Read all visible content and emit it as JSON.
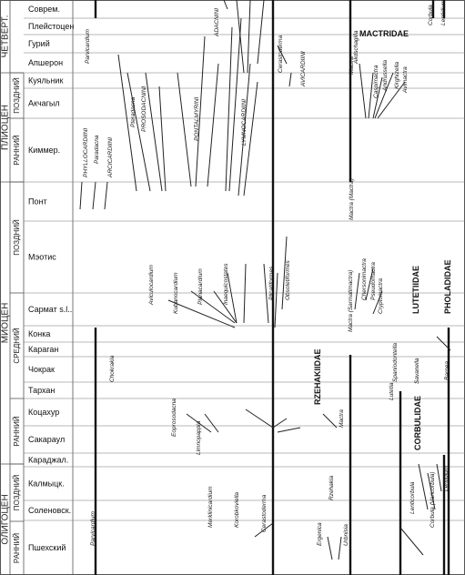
{
  "eras": [
    {
      "label": "ЧЕТВЕРТ.",
      "y1": 0,
      "y2": 80
    },
    {
      "label": "ПЛИОЦЕН",
      "y1": 80,
      "y2": 200
    },
    {
      "label": "МИОЦЕН",
      "y1": 200,
      "y2": 510
    },
    {
      "label": "ОЛИГОЦЕН",
      "y1": 510,
      "y2": 632
    }
  ],
  "subperiods": [
    {
      "label": "ПОЗДНИЙ",
      "y1": 80,
      "y2": 130
    },
    {
      "label": "РАННИЙ",
      "y1": 130,
      "y2": 200
    },
    {
      "label": "ПОЗДНИЙ",
      "y1": 200,
      "y2": 322
    },
    {
      "label": "СРЕДНИЙ",
      "y1": 322,
      "y2": 438
    },
    {
      "label": "РАННИЙ",
      "y1": 438,
      "y2": 510
    },
    {
      "label": "ПОЗДНИЙ",
      "y1": 510,
      "y2": 573
    },
    {
      "label": "РАННИЙ",
      "y1": 573,
      "y2": 632
    }
  ],
  "stages": [
    {
      "label": "Соврем."
    },
    {
      "label": "Плейстоцен"
    },
    {
      "label": "Гурий"
    },
    {
      "label": "Апшерон"
    },
    {
      "label": "Куяльник"
    },
    {
      "label": "Акчагыл"
    },
    {
      "label": "Киммер."
    },
    {
      "label": "Понт"
    },
    {
      "label": "Мэотис"
    },
    {
      "label": "Сармат s.l.."
    },
    {
      "label": "Конка"
    },
    {
      "label": "Караган"
    },
    {
      "label": "Чокрак"
    },
    {
      "label": "Тархан"
    },
    {
      "label": "Коцахур"
    },
    {
      "label": "Сакараул"
    },
    {
      "label": "Караджал."
    },
    {
      "label": "Калмыцк."
    },
    {
      "label": "Соленовск."
    },
    {
      "label": "Пшехский"
    }
  ],
  "families": [
    {
      "label": "MACTRIDAE"
    },
    {
      "label": "LUTETIIDAE"
    },
    {
      "label": "PHOLADIDAE"
    },
    {
      "label": "RZEHAKIIDAE"
    },
    {
      "label": "CORBULIDAE"
    }
  ],
  "taxa": [
    {
      "label": "Parvicardium"
    },
    {
      "label": "ADACNINI"
    },
    {
      "label": "Mactra"
    },
    {
      "label": "Corbula"
    },
    {
      "label": "Lentidium"
    },
    {
      "label": "Cerastoderma"
    },
    {
      "label": "AVICARDIINI"
    },
    {
      "label": "Akdschagilia"
    },
    {
      "label": "Caspimactra"
    },
    {
      "label": "Andrussella"
    },
    {
      "label": "Kirghizella"
    },
    {
      "label": "Avimactra"
    },
    {
      "label": "PHYLLOCARDIINI"
    },
    {
      "label": "Paradacna"
    },
    {
      "label": "ARCICARDIINI"
    },
    {
      "label": "Pteradacna"
    },
    {
      "label": "PROSODACNINI"
    },
    {
      "label": "PONTALMYRINI"
    },
    {
      "label": "LYMNOCARDIINI"
    },
    {
      "label": "Mactra (Mactra)"
    },
    {
      "label": "Aviculocardium"
    },
    {
      "label": "Kubanocardium"
    },
    {
      "label": "Planacardium"
    },
    {
      "label": "Inaequicostates"
    },
    {
      "label": "Plicatiformes"
    },
    {
      "label": "Obsoletiformes"
    },
    {
      "label": "Mactra (Sarmatimactra)"
    },
    {
      "label": "Chersonimactra"
    },
    {
      "label": "Pseudomactra"
    },
    {
      "label": "Cryptomactra"
    },
    {
      "label": "Spaniodontella"
    },
    {
      "label": "Savanella"
    },
    {
      "label": "Lutetia"
    },
    {
      "label": "Barnea"
    },
    {
      "label": "Chokrakia"
    },
    {
      "label": "Eoprosodacna"
    },
    {
      "label": "Limnopappia"
    },
    {
      "label": "Mactra"
    },
    {
      "label": "Merklinicardium"
    },
    {
      "label": "Korobkoviella"
    },
    {
      "label": "Cerastoderma"
    },
    {
      "label": "Rzehakia"
    },
    {
      "label": "Ergenica"
    },
    {
      "label": "Urbnisia"
    },
    {
      "label": "Lenticorbula"
    },
    {
      "label": "Corbula (Varicorbula)"
    },
    {
      "label": "Lentidium"
    },
    {
      "label": "Parvicardium"
    }
  ]
}
